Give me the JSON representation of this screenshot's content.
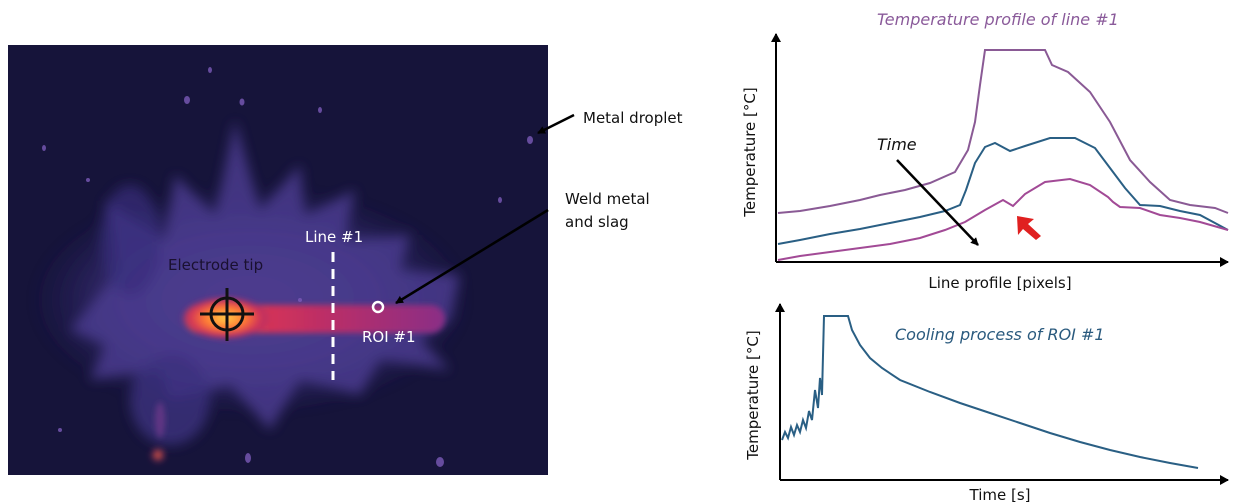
{
  "image_labels": {
    "metal_droplet": "Metal droplet",
    "weld_metal": "Weld metal",
    "and_slag": "and slag",
    "line": "Line #1",
    "electrode": "Electrode tip",
    "roi": "ROI #1"
  },
  "charts": {
    "profile": {
      "title": "Temperature profile of line #1",
      "ylabel": "Temperature [°C]",
      "xlabel": "Line profile [pixels]",
      "annotation": "Time"
    },
    "cooling": {
      "title": "Cooling process of ROI #1",
      "ylabel": "Temperature [°C]",
      "xlabel": "Time [s]"
    }
  },
  "colors": {
    "profile_title": "#8a5a9a",
    "cooling_title": "#2a5a7e",
    "series_purple": "#8a5a95",
    "series_blue": "#2a5f84",
    "series_magenta": "#a24a96",
    "red_arrow": "#e02020",
    "thermal_bg": "#16143a"
  },
  "chart_data": [
    {
      "type": "line",
      "title": "Temperature profile of line #1",
      "xlabel": "Line profile [pixels]",
      "ylabel": "Temperature [°C]",
      "x": [
        0,
        5,
        10,
        15,
        20,
        25,
        30,
        35,
        40,
        45,
        50,
        55,
        60,
        65,
        70,
        75,
        80,
        85,
        90,
        95,
        100
      ],
      "series": [
        {
          "values": [
            20,
            21,
            23,
            26,
            29,
            33,
            36,
            40,
            52,
            98,
            98,
            98,
            95,
            86,
            72,
            52,
            36,
            27,
            24,
            23,
            18
          ]
        },
        {
          "values": [
            4,
            6,
            9,
            12,
            16,
            19,
            23,
            26,
            35,
            56,
            51,
            55,
            57,
            52,
            44,
            30,
            18,
            16,
            15,
            14,
            9
          ]
        },
        {
          "values": [
            0,
            1,
            2,
            4,
            6,
            9,
            13,
            18,
            28,
            34,
            30,
            40,
            47,
            47,
            40,
            28,
            18,
            12,
            11,
            10,
            7
          ]
        }
      ]
    },
    {
      "type": "line",
      "title": "Cooling process of ROI #1",
      "xlabel": "Time [s]",
      "ylabel": "Temperature [°C]",
      "x": [
        0,
        4,
        8,
        10,
        11,
        13,
        14,
        16,
        17,
        18,
        19,
        20,
        22,
        25,
        30,
        40,
        50,
        60,
        70,
        80,
        90,
        100
      ],
      "series": [
        {
          "values": [
            28,
            26,
            30,
            42,
            32,
            50,
            100,
            100,
            100,
            100,
            88,
            80,
            70,
            65,
            60,
            52,
            43,
            34,
            25,
            17,
            10,
            3
          ]
        }
      ]
    }
  ]
}
